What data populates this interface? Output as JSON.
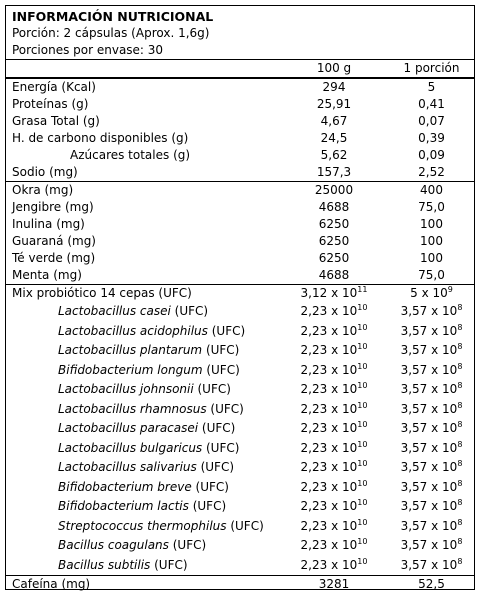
{
  "title": "INFORMACIÓN NUTRICIONAL",
  "serving": "Porción: 2 cápsulas (Aprox. 1,6g)",
  "servings_per_container": "Porciones por envase: 30",
  "columns": {
    "per100": "100 g",
    "perServing": "1 porción"
  },
  "basic": [
    {
      "name": "Energía (Kcal)",
      "v100": "294",
      "vp": "5"
    },
    {
      "name": "Proteínas (g)",
      "v100": "25,91",
      "vp": "0,41"
    },
    {
      "name": "Grasa Total (g)",
      "v100": "4,67",
      "vp": "0,07"
    },
    {
      "name": "H. de carbono disponibles (g)",
      "v100": "24,5",
      "vp": "0,39"
    },
    {
      "name": "Azúcares totales (g)",
      "v100": "5,62",
      "vp": "0,09"
    },
    {
      "name": "Sodio (mg)",
      "v100": "157,3",
      "vp": "2,52"
    }
  ],
  "herbs": [
    {
      "name": "Okra (mg)",
      "v100": "25000",
      "vp": "400"
    },
    {
      "name": "Jengibre (mg)",
      "v100": "4688",
      "vp": "75,0"
    },
    {
      "name": "Inulina (mg)",
      "v100": "6250",
      "vp": "100"
    },
    {
      "name": "Guaraná (mg)",
      "v100": "6250",
      "vp": "100"
    },
    {
      "name": "Té verde (mg)",
      "v100": "6250",
      "vp": "100"
    },
    {
      "name": "Menta (mg)",
      "v100": "4688",
      "vp": "75,0"
    }
  ],
  "probiotic_mix": {
    "name": "Mix probiótico 14 cepas (UFC)",
    "v100_base": "3,12 x 10",
    "v100_exp": "11",
    "vp_base": "5 x 10",
    "vp_exp": "9"
  },
  "strains": [
    {
      "species": "Lactobacillus casei",
      "unit": " (UFC)"
    },
    {
      "species": "Lactobacillus acidophilus",
      "unit": " (UFC)"
    },
    {
      "species": "Lactobacillus plantarum",
      "unit": " (UFC)"
    },
    {
      "species": "Bifidobacterium longum",
      "unit": " (UFC)"
    },
    {
      "species": "Lactobacillus johnsonii",
      "unit": " (UFC)"
    },
    {
      "species": "Lactobacillus rhamnosus",
      "unit": " (UFC)"
    },
    {
      "species": "Lactobacillus paracasei",
      "unit": " (UFC)"
    },
    {
      "species": "Lactobacillus bulgaricus",
      "unit": " (UFC)"
    },
    {
      "species": "Lactobacillus salivarius",
      "unit": " (UFC)"
    },
    {
      "species": "Bifidobacterium breve",
      "unit": " (UFC)"
    },
    {
      "species": "Bifidobacterium lactis",
      "unit": " (UFC)"
    },
    {
      "species": "Streptococcus thermophilus",
      "unit": " (UFC)"
    },
    {
      "species": "Bacillus coagulans",
      "unit": " (UFC)"
    },
    {
      "species": "Bacillus subtilis",
      "unit": " (UFC)"
    }
  ],
  "strain_values": {
    "v100_base": "2,23 x 10",
    "v100_exp": "10",
    "vp_base": "3,57 x 10",
    "vp_exp": "8"
  },
  "caffeine": {
    "name": "Cafeína (mg)",
    "v100": "3281",
    "vp": "52,5"
  }
}
